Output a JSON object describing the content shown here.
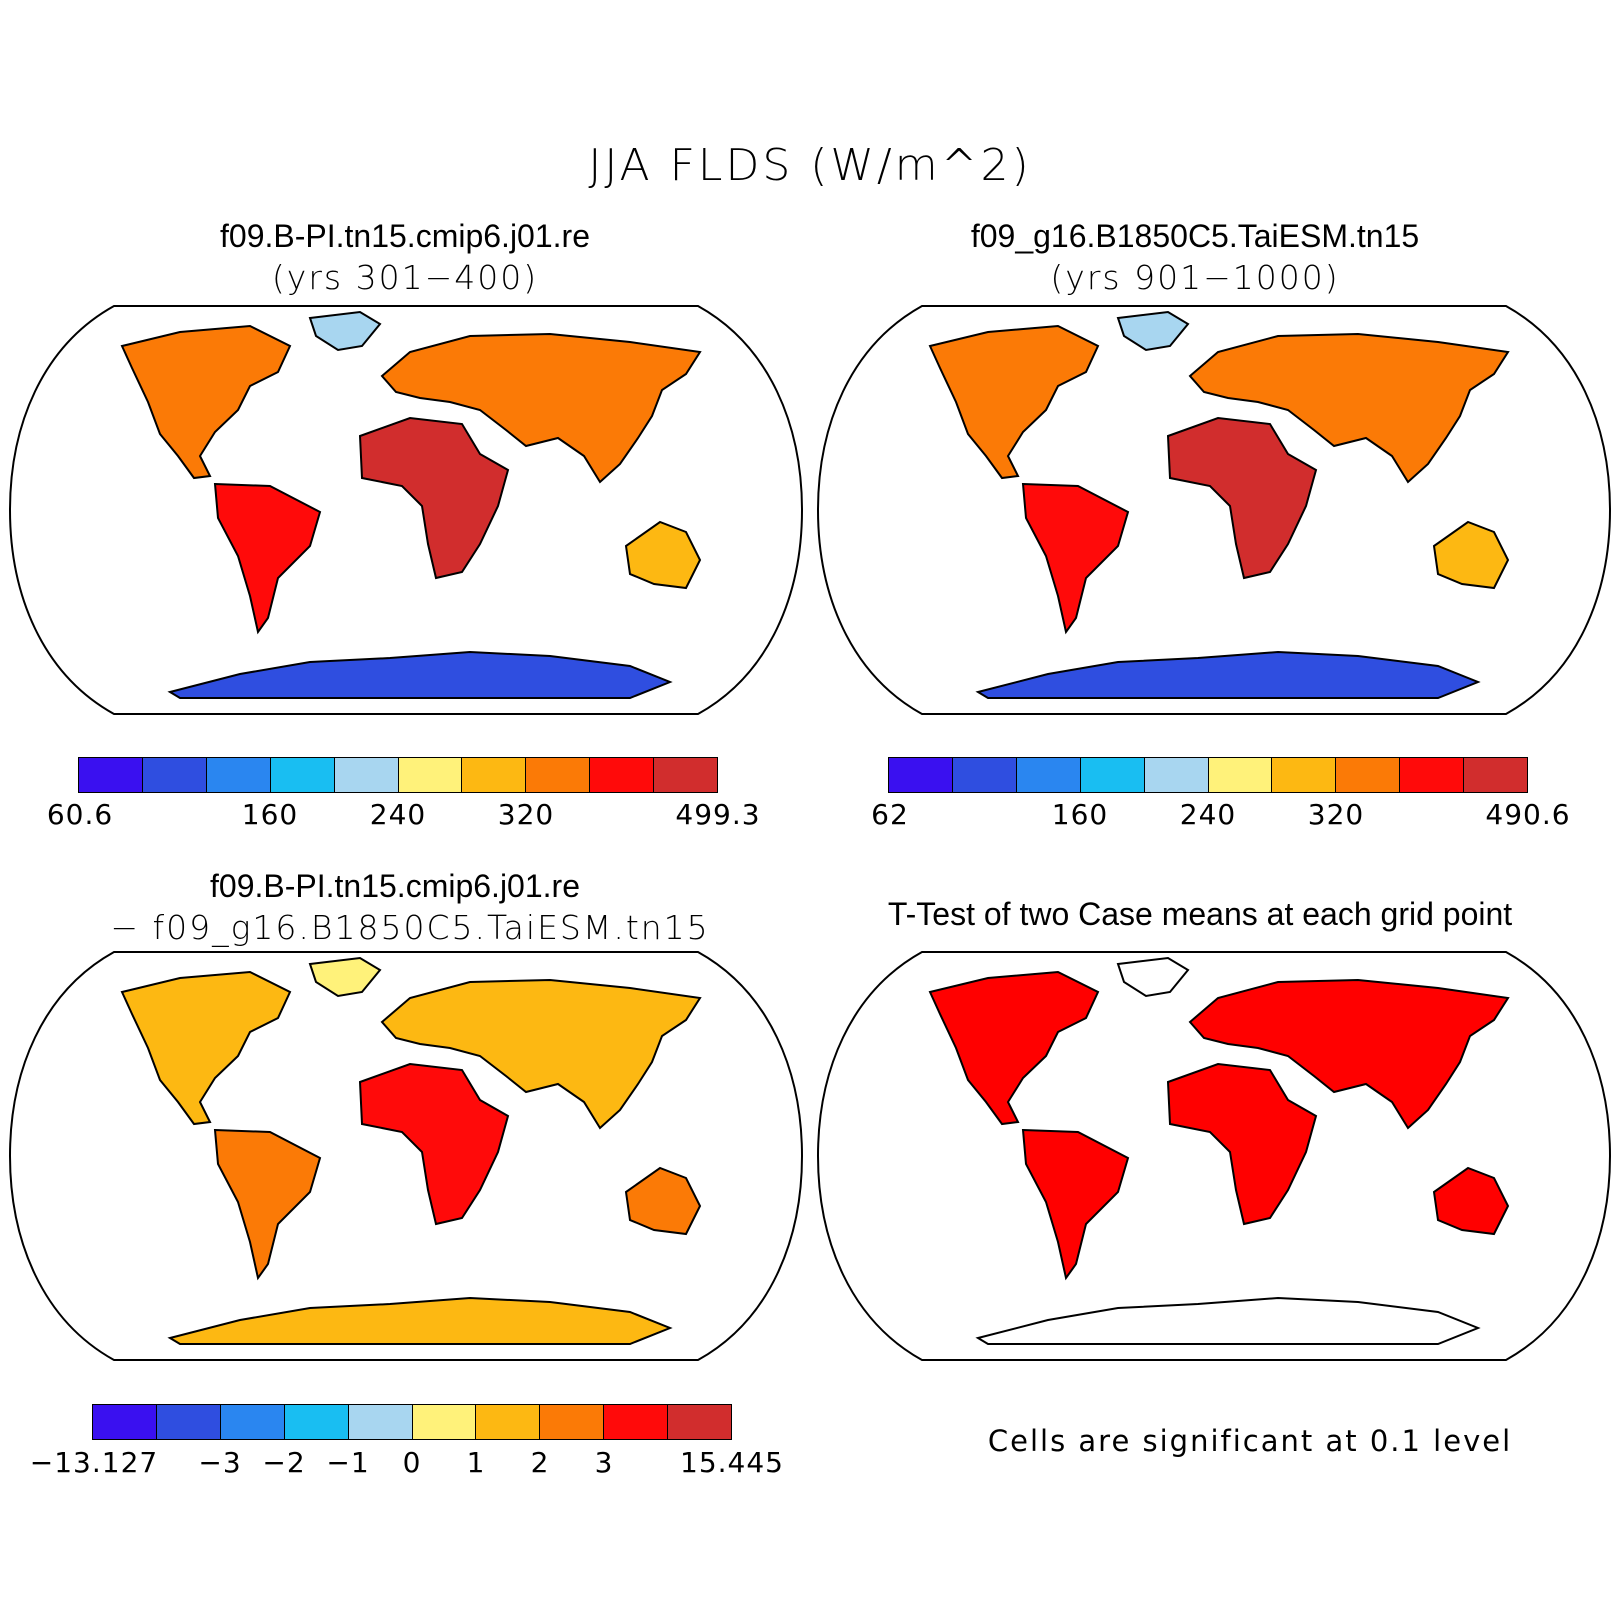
{
  "title": "JJA FLDS (W/m^2)",
  "panels": [
    {
      "title": "f09.B-PI.tn15.cmip6.j01.re",
      "subtitle": "(yrs 301−400)"
    },
    {
      "title": "f09_g16.B1850C5.TaiESM.tn15",
      "subtitle": "(yrs 901−1000)"
    },
    {
      "title": "f09.B-PI.tn15.cmip6.j01.re",
      "subtitle": "− f09_g16.B1850C5.TaiESM.tn15"
    },
    {
      "title": "T-Test of two Case means at each grid point",
      "note": "Cells are significant at 0.1 level"
    }
  ],
  "colorbars": [
    {
      "labels": [
        "60.6",
        "160",
        "240",
        "320",
        "499.3"
      ]
    },
    {
      "labels": [
        "62",
        "160",
        "240",
        "320",
        "490.6"
      ]
    },
    {
      "labels": [
        "−13.127",
        "−3",
        "−2",
        "−1",
        "0",
        "1",
        "2",
        "3",
        "15.445"
      ]
    }
  ],
  "colors": {
    "abs_scale": [
      "#3a10f0",
      "#2f4ee0",
      "#2a86f0",
      "#19bef2",
      "#a8d6f0",
      "#fff27a",
      "#fdb812",
      "#fb7a06",
      "#ff0a0a",
      "#d12d2d"
    ],
    "diff_scale": [
      "#3a10f0",
      "#2f4ee0",
      "#2a86f0",
      "#19bef2",
      "#a8d6f0",
      "#fff27a",
      "#fdb812",
      "#fb7a06",
      "#ff0a0a",
      "#d12d2d"
    ],
    "significant": "#ff0000"
  }
}
